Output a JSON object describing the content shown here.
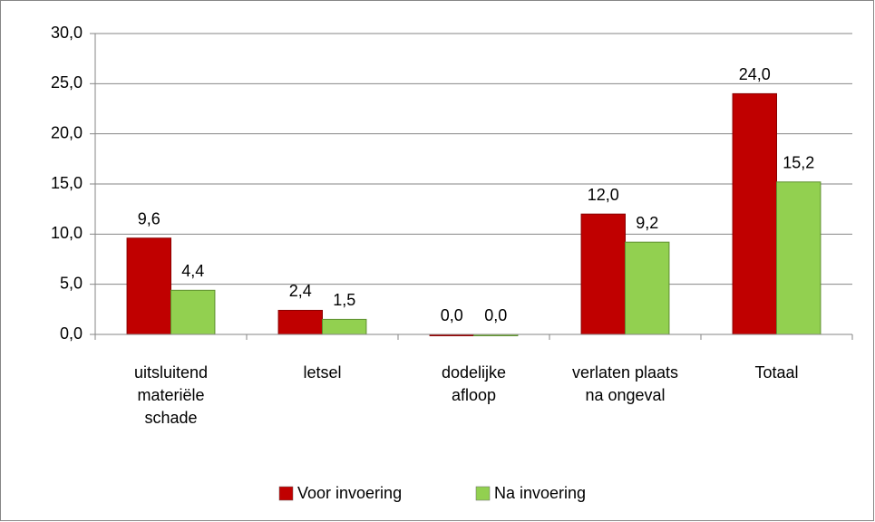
{
  "chart_data": {
    "type": "bar",
    "categories": [
      "uitsluitend\nmateriële\nschade",
      "letsel",
      "dodelijke\nafloop",
      "verlaten plaats\nna ongeval",
      "Totaal"
    ],
    "series": [
      {
        "name": "Voor invoering",
        "color": "#c00000",
        "values": [
          9.6,
          2.4,
          0.0,
          12.0,
          24.0
        ],
        "value_labels": [
          "9,6",
          "2,4",
          "0,0",
          "12,0",
          "24,0"
        ]
      },
      {
        "name": "Na invoering",
        "color": "#92d050",
        "values": [
          4.4,
          1.5,
          0.0,
          9.2,
          15.2
        ],
        "value_labels": [
          "4,4",
          "1,5",
          "0,0",
          "9,2",
          "15,2"
        ]
      }
    ],
    "ylim": [
      0,
      30
    ],
    "yticks": [
      {
        "value": 0,
        "label": "0,0"
      },
      {
        "value": 5,
        "label": "5,0"
      },
      {
        "value": 10,
        "label": "10,0"
      },
      {
        "value": 15,
        "label": "15,0"
      },
      {
        "value": 20,
        "label": "20,0"
      },
      {
        "value": 25,
        "label": "25,0"
      },
      {
        "value": 30,
        "label": "30,0"
      }
    ],
    "grid": true,
    "legend": "bottom"
  }
}
